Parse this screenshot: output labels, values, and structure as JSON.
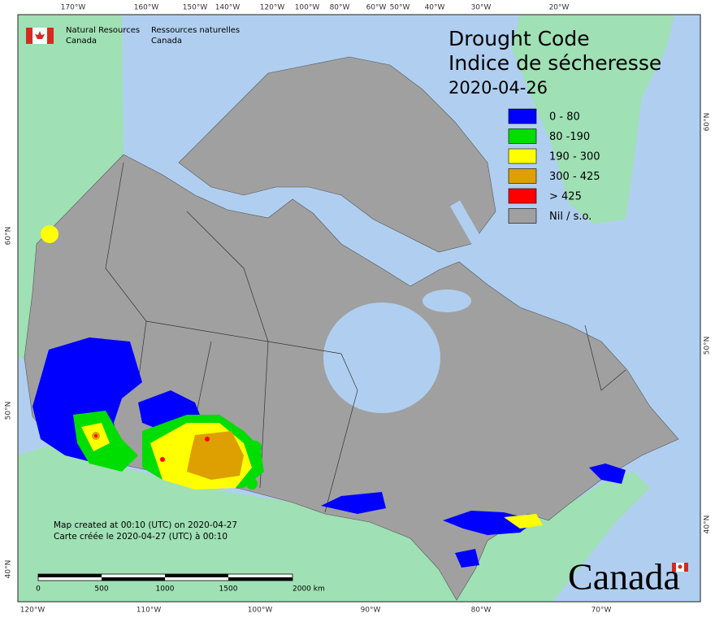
{
  "header": {
    "org_en": [
      "Natural Resources",
      "Canada"
    ],
    "org_fr": [
      "Ressources naturelles",
      "Canada"
    ]
  },
  "title": {
    "en": "Drought Code",
    "fr": "Indice de sécheresse",
    "date": "2020-04-26"
  },
  "legend": [
    {
      "label": "0 - 80",
      "color": "#0000ff"
    },
    {
      "label": "80 -190",
      "color": "#00dd00"
    },
    {
      "label": "190 - 300",
      "color": "#ffff00"
    },
    {
      "label": "300 - 425",
      "color": "#dda000"
    },
    {
      "label": "> 425",
      "color": "#ff0000"
    },
    {
      "label": "Nil / s.o.",
      "color": "#a0a0a0"
    }
  ],
  "graticule": {
    "top": [
      "170°W",
      "160°W",
      "150°W",
      "140°W",
      "120°W",
      "100°W",
      "80°W",
      "60°W",
      "50°W",
      "40°W",
      "30°W",
      "20°W"
    ],
    "bottom": [
      "120°W",
      "110°W",
      "100°W",
      "90°W",
      "80°W",
      "70°W"
    ],
    "left": [
      "60°N",
      "50°N",
      "40°N"
    ],
    "right": [
      "60°N",
      "50°N",
      "40°N"
    ]
  },
  "credit": [
    "Map created at 00:10 (UTC) on 2020-04-27",
    "Carte créée le 2020-04-27 (UTC) à 00:10"
  ],
  "scale": [
    "0",
    "500",
    "1000",
    "1500",
    "2000 km"
  ],
  "wordmark": "Canada"
}
